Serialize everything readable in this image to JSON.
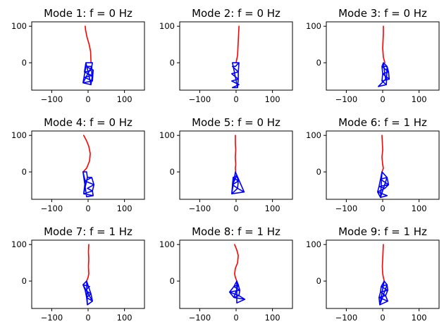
{
  "colors": {
    "beam": "#ff0000",
    "truss": "#0000ff"
  },
  "chart_data": [
    {
      "type": "line",
      "title": "Mode 1: f = 0 Hz",
      "xlim": [
        -155,
        155
      ],
      "ylim": [
        -75,
        112
      ],
      "xticks": [
        -100,
        0,
        100
      ],
      "xtick_labels": [
        "−100",
        "0",
        "100"
      ],
      "yticks": [
        0,
        100
      ],
      "ytick_labels": [
        "0",
        "100"
      ],
      "series": [
        {
          "color": "#ff0000",
          "x": [
            -8,
            -7,
            -5,
            -3,
            0,
            3,
            5,
            7,
            8
          ],
          "y": [
            100,
            90,
            80,
            70,
            60,
            50,
            40,
            30,
            0
          ]
        },
        {
          "color": "#0000ff",
          "x": [
            -6,
            12,
            10,
            -6,
            14,
            -10,
            10,
            -10,
            12,
            -14,
            8,
            -6,
            -10,
            -6,
            -14,
            10,
            10,
            12,
            14,
            8
          ],
          "y": [
            0,
            0,
            -10,
            -10,
            -20,
            -25,
            -35,
            -40,
            -50,
            -55,
            -60,
            0,
            -25,
            -10,
            -55,
            -10,
            -35,
            -50,
            -20,
            -60
          ]
        }
      ]
    },
    {
      "type": "line",
      "title": "Mode 2: f = 0 Hz",
      "xlim": [
        -155,
        155
      ],
      "ylim": [
        -75,
        112
      ],
      "xticks": [
        -100,
        0,
        100
      ],
      "xtick_labels": [
        "−100",
        "0",
        "100"
      ],
      "yticks": [
        0,
        100
      ],
      "ytick_labels": [
        "0",
        "100"
      ],
      "series": [
        {
          "color": "#ff0000",
          "x": [
            8,
            7,
            6,
            5,
            4,
            2,
            0
          ],
          "y": [
            100,
            80,
            60,
            40,
            20,
            10,
            0
          ]
        },
        {
          "color": "#0000ff",
          "x": [
            -10,
            8,
            -2,
            -10,
            6,
            -12,
            6,
            -12,
            8,
            -10,
            4,
            -10,
            8,
            6,
            6,
            4
          ],
          "y": [
            0,
            0,
            -10,
            -10,
            -25,
            -30,
            -45,
            -50,
            -60,
            -68,
            -68,
            0,
            0,
            -25,
            -45,
            -68
          ]
        }
      ]
    },
    {
      "type": "line",
      "title": "Mode 3: f = 0 Hz",
      "xlim": [
        -155,
        155
      ],
      "ylim": [
        -75,
        112
      ],
      "xticks": [
        -100,
        0,
        100
      ],
      "xtick_labels": [
        "−100",
        "0",
        "100"
      ],
      "yticks": [
        0,
        100
      ],
      "ytick_labels": [
        "0",
        "100"
      ],
      "series": [
        {
          "color": "#ff0000",
          "x": [
            2,
            2,
            1,
            0,
            2,
            6
          ],
          "y": [
            100,
            80,
            60,
            40,
            15,
            0
          ]
        },
        {
          "color": "#0000ff",
          "x": [
            2,
            12,
            -2,
            16,
            0,
            18,
            -2,
            10,
            -12,
            8,
            2,
            -2,
            0,
            -2,
            10,
            12,
            16,
            18
          ],
          "y": [
            0,
            -10,
            -10,
            -25,
            -30,
            -45,
            -50,
            -60,
            -65,
            -45,
            0,
            -10,
            -30,
            -50,
            -60,
            -10,
            -25,
            -45
          ]
        }
      ]
    },
    {
      "type": "line",
      "title": "Mode 4: f = 0 Hz",
      "xlim": [
        -155,
        155
      ],
      "ylim": [
        -75,
        112
      ],
      "xticks": [
        -100,
        0,
        100
      ],
      "xtick_labels": [
        "−100",
        "0",
        "100"
      ],
      "yticks": [
        0,
        100
      ],
      "ytick_labels": [
        "0",
        "100"
      ],
      "series": [
        {
          "color": "#ff0000",
          "x": [
            -12,
            -4,
            2,
            6,
            4,
            -4,
            -14
          ],
          "y": [
            100,
            85,
            70,
            50,
            30,
            10,
            0
          ]
        },
        {
          "color": "#0000ff",
          "x": [
            -14,
            -4,
            -2,
            10,
            -8,
            16,
            -2,
            12,
            -12,
            14,
            -4,
            -14,
            -8,
            -12,
            -2,
            10,
            16,
            12,
            14,
            -4
          ],
          "y": [
            0,
            0,
            -15,
            -15,
            -25,
            -35,
            -45,
            -52,
            -60,
            -65,
            -68,
            0,
            -25,
            -60,
            -15,
            -15,
            -35,
            -52,
            -65,
            -68
          ]
        }
      ]
    },
    {
      "type": "line",
      "title": "Mode 5: f = 0 Hz",
      "xlim": [
        -155,
        155
      ],
      "ylim": [
        -75,
        112
      ],
      "xticks": [
        -100,
        0,
        100
      ],
      "xtick_labels": [
        "−100",
        "0",
        "100"
      ],
      "yticks": [
        0,
        100
      ],
      "ytick_labels": [
        "0",
        "100"
      ],
      "series": [
        {
          "color": "#ff0000",
          "x": [
            -2,
            -2,
            -1,
            -2,
            -1,
            -2,
            -1
          ],
          "y": [
            100,
            80,
            60,
            40,
            20,
            10,
            0
          ]
        },
        {
          "color": "#0000ff",
          "x": [
            -2,
            2,
            -8,
            6,
            -10,
            4,
            -12,
            22,
            -2,
            -12,
            -8,
            -10,
            2,
            6,
            4,
            22
          ],
          "y": [
            0,
            -10,
            -15,
            -25,
            -35,
            -45,
            -60,
            -55,
            0,
            -60,
            -15,
            -35,
            -10,
            -25,
            -45,
            -55
          ]
        }
      ]
    },
    {
      "type": "line",
      "title": "Mode 6: f = 1 Hz",
      "xlim": [
        -155,
        155
      ],
      "ylim": [
        -75,
        112
      ],
      "xticks": [
        -100,
        0,
        100
      ],
      "xtick_labels": [
        "−100",
        "0",
        "100"
      ],
      "yticks": [
        0,
        100
      ],
      "ytick_labels": [
        "0",
        "100"
      ],
      "series": [
        {
          "color": "#ff0000",
          "x": [
            -2,
            -1,
            0,
            -2,
            0,
            2,
            -2
          ],
          "y": [
            100,
            80,
            60,
            40,
            20,
            10,
            0
          ]
        },
        {
          "color": "#0000ff",
          "x": [
            -2,
            12,
            -6,
            16,
            -10,
            6,
            -14,
            12,
            -6,
            -2,
            -6,
            -10,
            -14,
            -6,
            12,
            16,
            6
          ],
          "y": [
            0,
            -15,
            -20,
            -35,
            -40,
            -45,
            -55,
            -65,
            -70,
            0,
            -20,
            -40,
            -55,
            -70,
            -15,
            -35,
            -45
          ]
        }
      ]
    },
    {
      "type": "line",
      "title": "Mode 7: f = 1 Hz",
      "xlim": [
        -155,
        155
      ],
      "ylim": [
        -75,
        112
      ],
      "xticks": [
        -100,
        0,
        100
      ],
      "xtick_labels": [
        "−100",
        "0",
        "100"
      ],
      "yticks": [
        0,
        100
      ],
      "ytick_labels": [
        "0",
        "100"
      ],
      "series": [
        {
          "color": "#ff0000",
          "x": [
            2,
            1,
            2,
            1,
            2,
            0,
            -4
          ],
          "y": [
            100,
            80,
            60,
            40,
            20,
            10,
            0
          ]
        },
        {
          "color": "#0000ff",
          "x": [
            -4,
            -14,
            4,
            -8,
            8,
            -4,
            12,
            -2,
            -4,
            8,
            12,
            -14,
            -8,
            -4,
            -2
          ],
          "y": [
            0,
            -10,
            -15,
            -25,
            -35,
            -45,
            -55,
            -65,
            0,
            -35,
            -55,
            -10,
            -25,
            -45,
            -65
          ]
        }
      ]
    },
    {
      "type": "line",
      "title": "Mode 8: f = 1 Hz",
      "xlim": [
        -155,
        155
      ],
      "ylim": [
        -75,
        112
      ],
      "xticks": [
        -100,
        0,
        100
      ],
      "xtick_labels": [
        "−100",
        "0",
        "100"
      ],
      "yticks": [
        0,
        100
      ],
      "ytick_labels": [
        "0",
        "100"
      ],
      "series": [
        {
          "color": "#ff0000",
          "x": [
            -4,
            2,
            6,
            4,
            -2,
            -4,
            -2,
            2
          ],
          "y": [
            100,
            85,
            70,
            50,
            35,
            20,
            10,
            0
          ]
        },
        {
          "color": "#0000ff",
          "x": [
            2,
            6,
            -6,
            10,
            -18,
            8,
            -6,
            24,
            2,
            2,
            -6,
            -18,
            -6,
            6,
            10,
            8,
            24
          ],
          "y": [
            0,
            -10,
            -15,
            -25,
            -30,
            -40,
            -45,
            -50,
            -60,
            0,
            -15,
            -30,
            -45,
            -10,
            -25,
            -40,
            -50
          ]
        }
      ]
    },
    {
      "type": "line",
      "title": "Mode 9: f = 1 Hz",
      "xlim": [
        -155,
        155
      ],
      "ylim": [
        -75,
        112
      ],
      "xticks": [
        -100,
        0,
        100
      ],
      "xtick_labels": [
        "−100",
        "0",
        "100"
      ],
      "yticks": [
        0,
        100
      ],
      "ytick_labels": [
        "0",
        "100"
      ],
      "series": [
        {
          "color": "#ff0000",
          "x": [
            2,
            1,
            0,
            -1,
            0,
            2,
            4
          ],
          "y": [
            100,
            80,
            60,
            40,
            20,
            10,
            0
          ]
        },
        {
          "color": "#0000ff",
          "x": [
            4,
            12,
            -4,
            14,
            -6,
            8,
            -10,
            14,
            -8,
            4,
            -4,
            -6,
            -10,
            -8,
            12,
            14,
            8,
            14
          ],
          "y": [
            0,
            -10,
            -15,
            -25,
            -30,
            -40,
            -45,
            -55,
            -65,
            0,
            -15,
            -30,
            -45,
            -65,
            -10,
            -25,
            -40,
            -55
          ]
        }
      ]
    }
  ]
}
